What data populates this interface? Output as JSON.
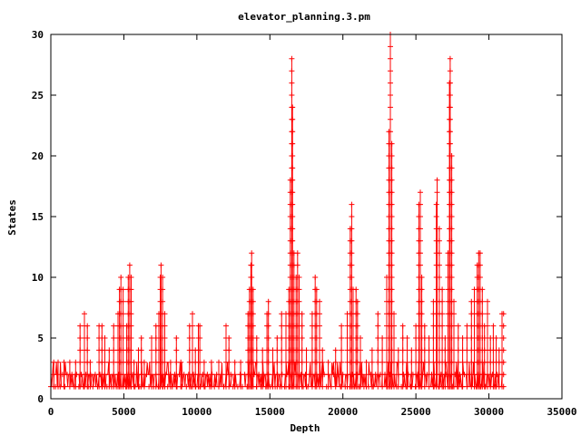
{
  "chart_data": {
    "type": "line",
    "title": "elevator_planning.3.pm",
    "xlabel": "Depth",
    "ylabel": "States",
    "xlim": [
      0,
      35000
    ],
    "ylim": [
      0,
      30
    ],
    "xticks": [
      0,
      5000,
      10000,
      15000,
      20000,
      25000,
      30000,
      35000
    ],
    "yticks": [
      0,
      5,
      10,
      15,
      20,
      25,
      30
    ],
    "grid": false,
    "marker": "plus",
    "series": [
      {
        "color": "#ff0000",
        "baseline_range": [
          1,
          2
        ],
        "x_range": [
          0,
          31000
        ],
        "peaks": [
          {
            "x": 200,
            "y": 3
          },
          {
            "x": 500,
            "y": 3
          },
          {
            "x": 900,
            "y": 3
          },
          {
            "x": 1300,
            "y": 3
          },
          {
            "x": 1700,
            "y": 3
          },
          {
            "x": 2000,
            "y": 6
          },
          {
            "x": 2300,
            "y": 7
          },
          {
            "x": 2500,
            "y": 6
          },
          {
            "x": 2700,
            "y": 3
          },
          {
            "x": 3300,
            "y": 6
          },
          {
            "x": 3500,
            "y": 6
          },
          {
            "x": 3700,
            "y": 5
          },
          {
            "x": 4000,
            "y": 4
          },
          {
            "x": 4300,
            "y": 6
          },
          {
            "x": 4600,
            "y": 7
          },
          {
            "x": 4700,
            "y": 9
          },
          {
            "x": 4800,
            "y": 10
          },
          {
            "x": 4950,
            "y": 9
          },
          {
            "x": 5200,
            "y": 6
          },
          {
            "x": 5300,
            "y": 10
          },
          {
            "x": 5400,
            "y": 11
          },
          {
            "x": 5500,
            "y": 10
          },
          {
            "x": 5700,
            "y": 3
          },
          {
            "x": 6000,
            "y": 4
          },
          {
            "x": 6200,
            "y": 5
          },
          {
            "x": 6400,
            "y": 3
          },
          {
            "x": 6900,
            "y": 5
          },
          {
            "x": 7200,
            "y": 6
          },
          {
            "x": 7400,
            "y": 7
          },
          {
            "x": 7500,
            "y": 10
          },
          {
            "x": 7550,
            "y": 11
          },
          {
            "x": 7650,
            "y": 10
          },
          {
            "x": 7800,
            "y": 7
          },
          {
            "x": 8200,
            "y": 3
          },
          {
            "x": 8600,
            "y": 5
          },
          {
            "x": 8900,
            "y": 3
          },
          {
            "x": 9500,
            "y": 6
          },
          {
            "x": 9700,
            "y": 7
          },
          {
            "x": 9900,
            "y": 4
          },
          {
            "x": 10100,
            "y": 6
          },
          {
            "x": 10200,
            "y": 6
          },
          {
            "x": 10500,
            "y": 3
          },
          {
            "x": 11000,
            "y": 3
          },
          {
            "x": 11500,
            "y": 3
          },
          {
            "x": 12000,
            "y": 6
          },
          {
            "x": 12200,
            "y": 5
          },
          {
            "x": 12600,
            "y": 3
          },
          {
            "x": 13000,
            "y": 3
          },
          {
            "x": 13500,
            "y": 7
          },
          {
            "x": 13600,
            "y": 9
          },
          {
            "x": 13700,
            "y": 11
          },
          {
            "x": 13750,
            "y": 12
          },
          {
            "x": 13850,
            "y": 9
          },
          {
            "x": 14100,
            "y": 5
          },
          {
            "x": 14500,
            "y": 4
          },
          {
            "x": 14800,
            "y": 7
          },
          {
            "x": 14900,
            "y": 8
          },
          {
            "x": 15200,
            "y": 4
          },
          {
            "x": 15500,
            "y": 5
          },
          {
            "x": 15800,
            "y": 7
          },
          {
            "x": 16100,
            "y": 7
          },
          {
            "x": 16300,
            "y": 9
          },
          {
            "x": 16400,
            "y": 18
          },
          {
            "x": 16500,
            "y": 28
          },
          {
            "x": 16550,
            "y": 24
          },
          {
            "x": 16650,
            "y": 12
          },
          {
            "x": 16800,
            "y": 10
          },
          {
            "x": 16900,
            "y": 12
          },
          {
            "x": 17000,
            "y": 10
          },
          {
            "x": 17200,
            "y": 7
          },
          {
            "x": 17500,
            "y": 4
          },
          {
            "x": 17900,
            "y": 7
          },
          {
            "x": 18100,
            "y": 10
          },
          {
            "x": 18200,
            "y": 9
          },
          {
            "x": 18400,
            "y": 8
          },
          {
            "x": 18600,
            "y": 4
          },
          {
            "x": 19000,
            "y": 3
          },
          {
            "x": 19500,
            "y": 4
          },
          {
            "x": 19900,
            "y": 6
          },
          {
            "x": 20300,
            "y": 7
          },
          {
            "x": 20500,
            "y": 14
          },
          {
            "x": 20600,
            "y": 16
          },
          {
            "x": 20700,
            "y": 9
          },
          {
            "x": 20900,
            "y": 9
          },
          {
            "x": 21000,
            "y": 8
          },
          {
            "x": 21200,
            "y": 5
          },
          {
            "x": 21600,
            "y": 3
          },
          {
            "x": 22000,
            "y": 4
          },
          {
            "x": 22400,
            "y": 7
          },
          {
            "x": 22700,
            "y": 5
          },
          {
            "x": 23000,
            "y": 10
          },
          {
            "x": 23150,
            "y": 22
          },
          {
            "x": 23250,
            "y": 30
          },
          {
            "x": 23350,
            "y": 21
          },
          {
            "x": 23500,
            "y": 7
          },
          {
            "x": 23800,
            "y": 4
          },
          {
            "x": 24100,
            "y": 6
          },
          {
            "x": 24400,
            "y": 5
          },
          {
            "x": 24700,
            "y": 4
          },
          {
            "x": 25000,
            "y": 6
          },
          {
            "x": 25200,
            "y": 16
          },
          {
            "x": 25300,
            "y": 17
          },
          {
            "x": 25400,
            "y": 10
          },
          {
            "x": 25600,
            "y": 6
          },
          {
            "x": 25900,
            "y": 5
          },
          {
            "x": 26200,
            "y": 8
          },
          {
            "x": 26400,
            "y": 16
          },
          {
            "x": 26450,
            "y": 18
          },
          {
            "x": 26600,
            "y": 14
          },
          {
            "x": 26800,
            "y": 9
          },
          {
            "x": 27000,
            "y": 5
          },
          {
            "x": 27200,
            "y": 12
          },
          {
            "x": 27300,
            "y": 26
          },
          {
            "x": 27350,
            "y": 28
          },
          {
            "x": 27450,
            "y": 20
          },
          {
            "x": 27600,
            "y": 8
          },
          {
            "x": 27900,
            "y": 6
          },
          {
            "x": 28200,
            "y": 5
          },
          {
            "x": 28500,
            "y": 6
          },
          {
            "x": 28800,
            "y": 8
          },
          {
            "x": 29000,
            "y": 9
          },
          {
            "x": 29200,
            "y": 11
          },
          {
            "x": 29300,
            "y": 12
          },
          {
            "x": 29400,
            "y": 12
          },
          {
            "x": 29550,
            "y": 9
          },
          {
            "x": 29700,
            "y": 6
          },
          {
            "x": 29900,
            "y": 8
          },
          {
            "x": 30100,
            "y": 5
          },
          {
            "x": 30300,
            "y": 6
          },
          {
            "x": 30500,
            "y": 5
          },
          {
            "x": 30700,
            "y": 4
          },
          {
            "x": 30900,
            "y": 7
          },
          {
            "x": 31000,
            "y": 7
          }
        ]
      }
    ]
  }
}
